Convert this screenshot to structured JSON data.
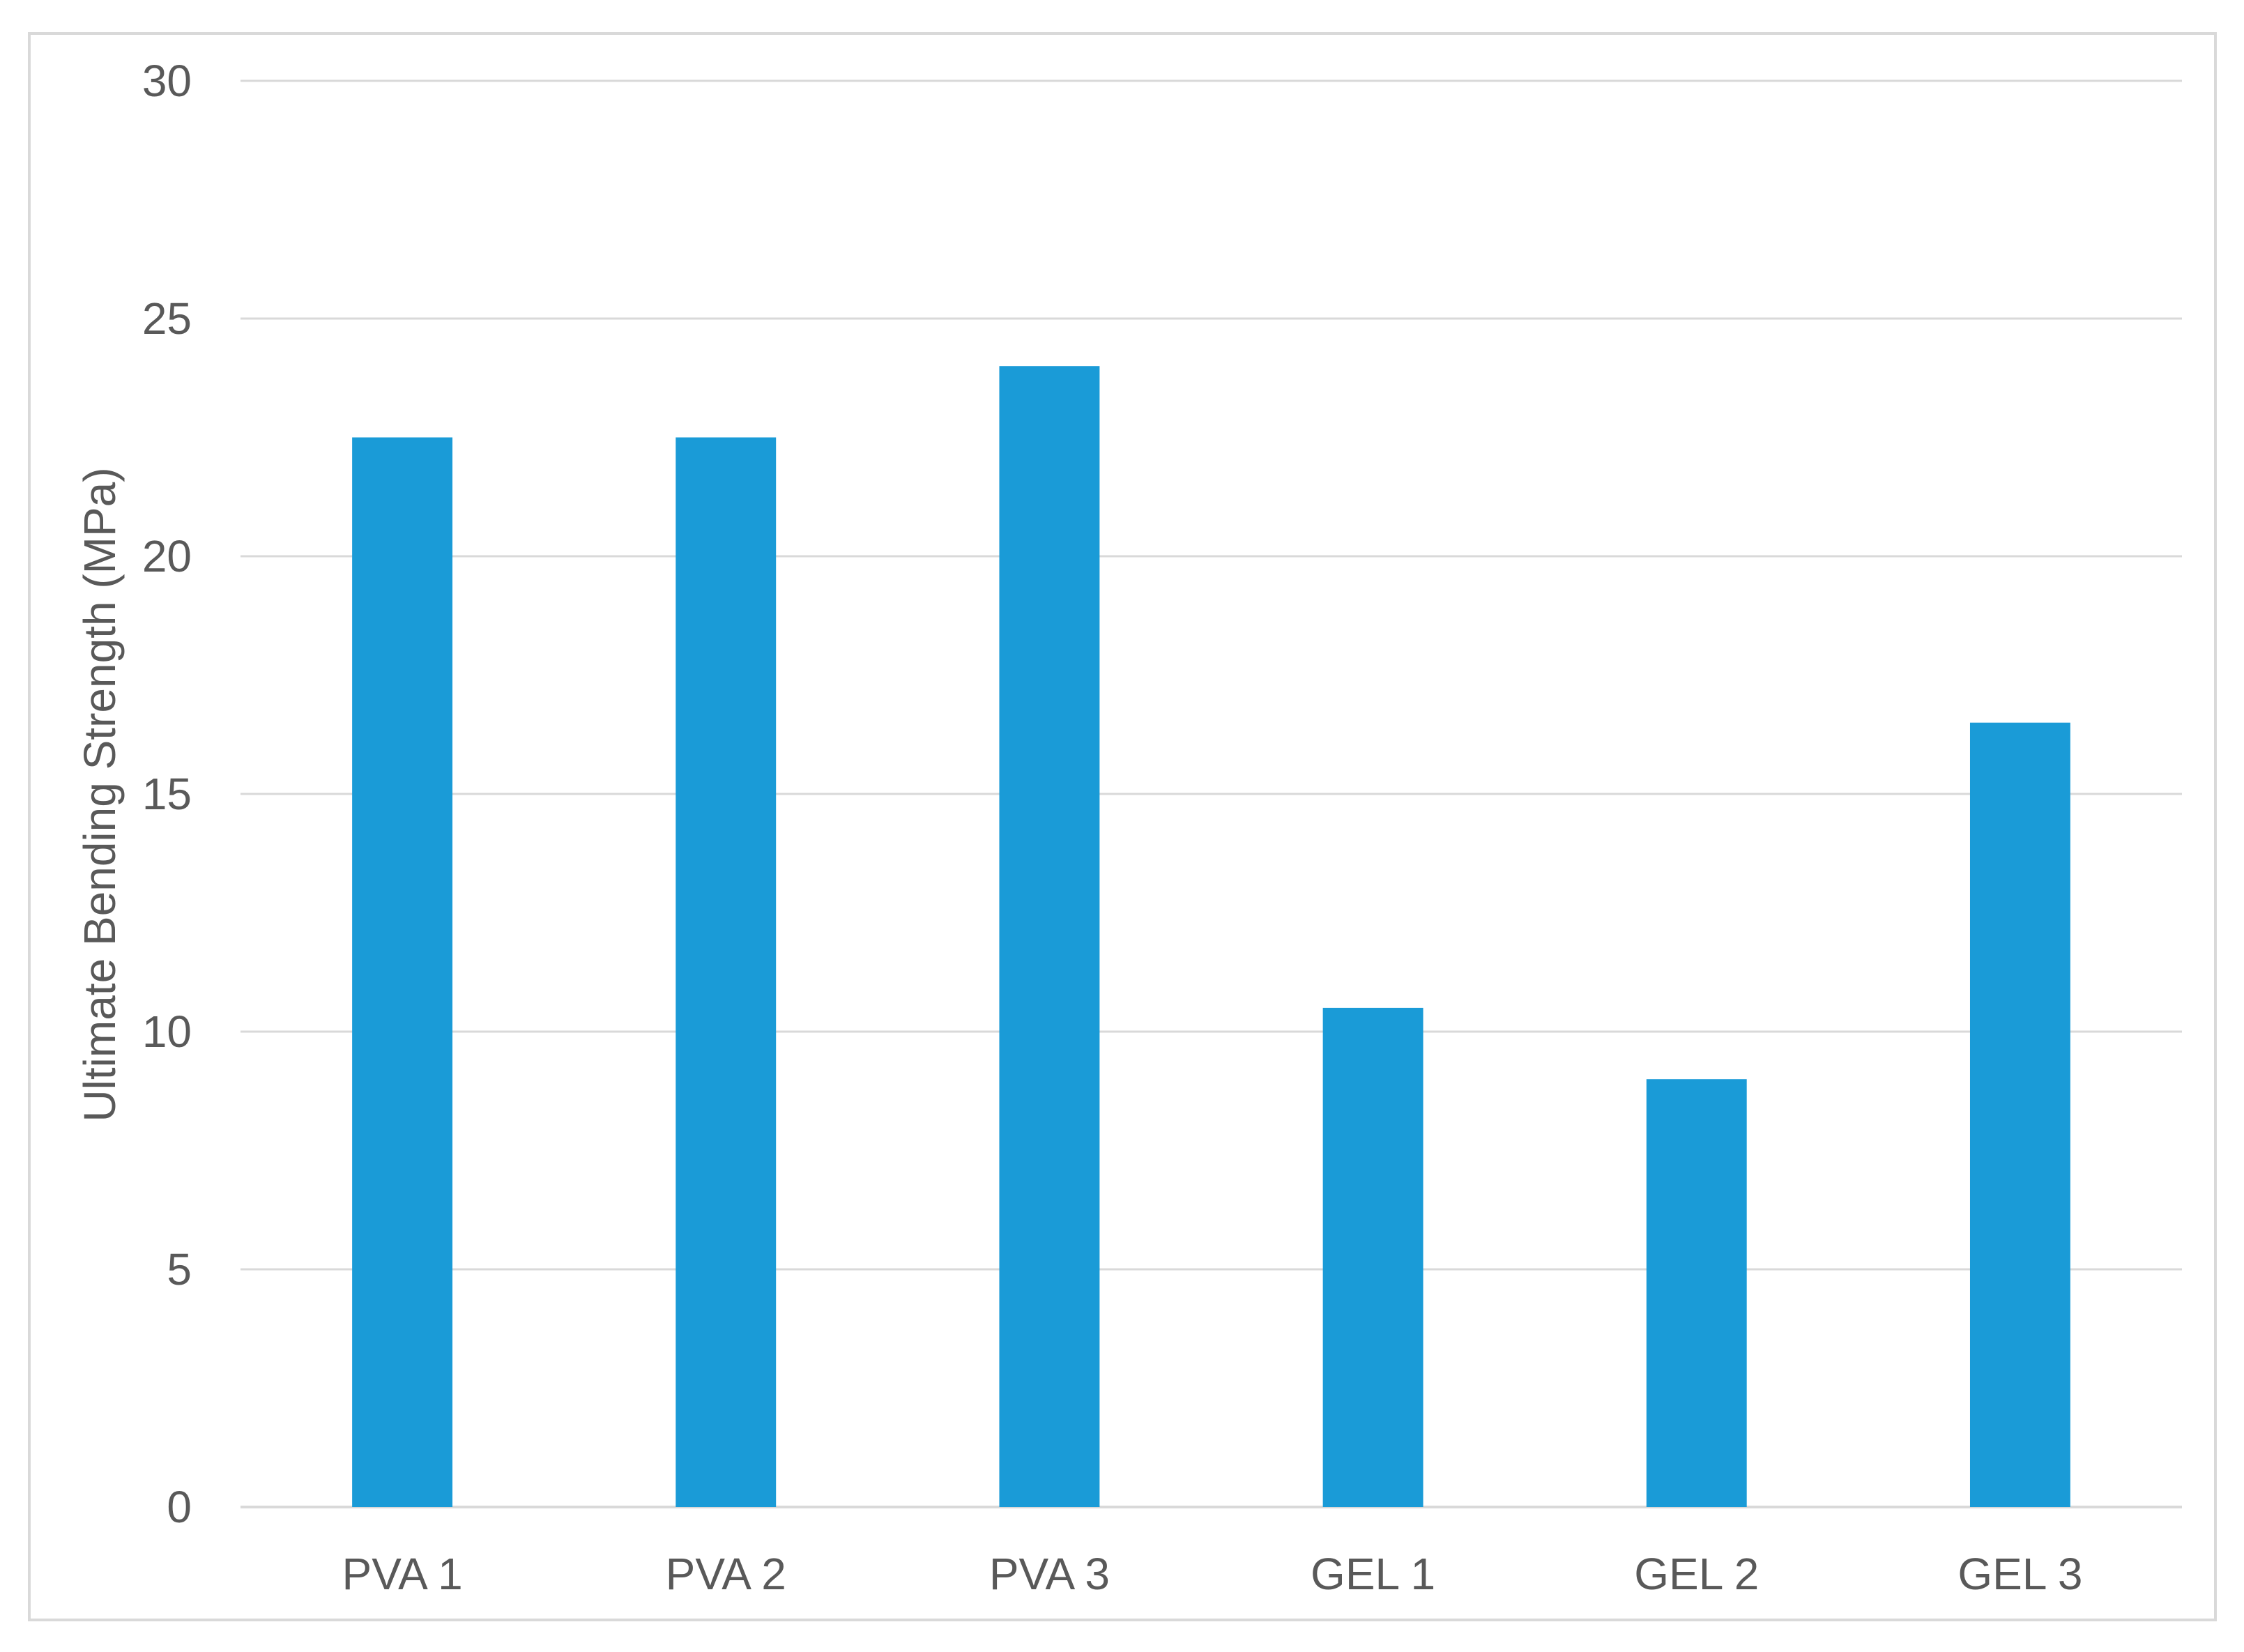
{
  "chart_data": {
    "type": "bar",
    "title": "",
    "xlabel": "",
    "ylabel": "Ultimate Bending Strength (MPa)",
    "categories": [
      "PVA 1",
      "PVA 2",
      "PVA 3",
      "GEL 1",
      "GEL 2",
      "GEL 3"
    ],
    "values": [
      22.5,
      22.5,
      24,
      10.5,
      9,
      16.5
    ],
    "ylim": [
      0,
      30
    ],
    "yticks": [
      0,
      5,
      10,
      15,
      20,
      25,
      30
    ],
    "grid": true,
    "legend": "none",
    "bar_color": "#1a9bd7",
    "grid_color": "#d9d9d9",
    "text_color": "#595959"
  }
}
